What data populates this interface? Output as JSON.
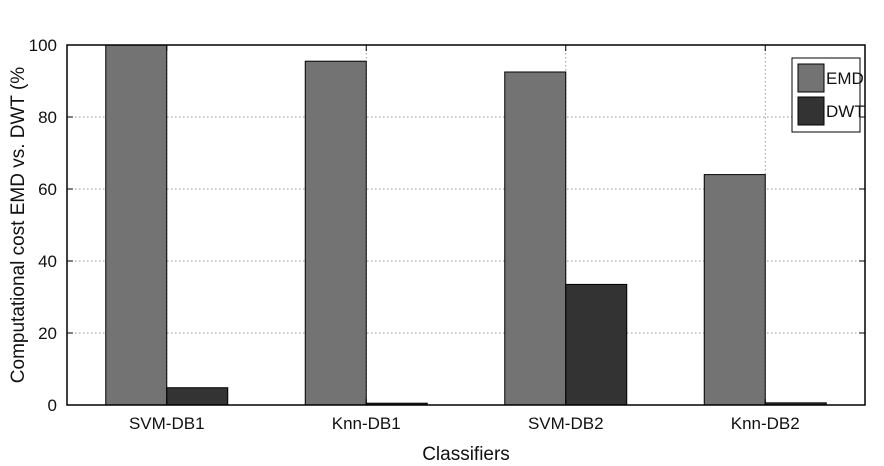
{
  "chart_data": {
    "type": "bar",
    "categories": [
      "SVM-DB1",
      "Knn-DB1",
      "SVM-DB2",
      "Knn-DB2"
    ],
    "series": [
      {
        "name": "EMD",
        "values": [
          100,
          95.5,
          92.5,
          64
        ]
      },
      {
        "name": "DWT",
        "values": [
          4.8,
          0.5,
          33.5,
          0.6
        ]
      }
    ],
    "title": "",
    "xlabel": "Classifiers",
    "ylabel": "Computational cost EMD vs. DWT (%",
    "ylim": [
      0,
      100
    ],
    "yticks": [
      0,
      20,
      40,
      60,
      80,
      100
    ],
    "grid": true,
    "legend_position": "top-right",
    "colors": {
      "EMD": "#737373",
      "DWT": "#333333"
    }
  }
}
